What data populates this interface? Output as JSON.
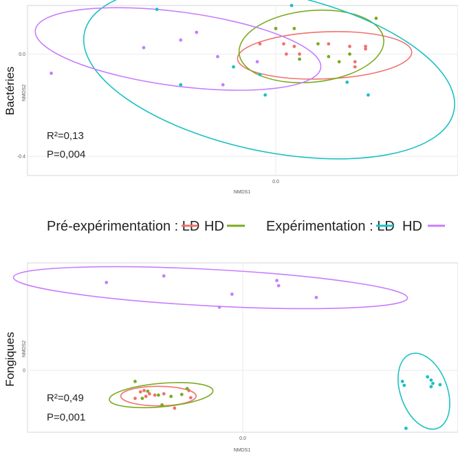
{
  "legend": {
    "group1_label": "Pré-expérimentation : LD",
    "group1_hd_label": "HD",
    "group2_label": "Expérimentation : LD",
    "group2_hd_label": "HD"
  },
  "colors": {
    "pre_LD": "#f0716c",
    "pre_HD": "#7aab1f",
    "exp_LD": "#19c1c4",
    "exp_HD": "#c77cff",
    "grid": "#ebebeb",
    "axis_line": "#d6d6d6",
    "text": "#333333"
  },
  "chart_data": [
    {
      "type": "scatter",
      "title": "Bactéries",
      "xlabel": "NMDS1",
      "ylabel": "NMDS2",
      "xlim": [
        -0.94,
        0.69
      ],
      "ylim": [
        -0.475,
        0.19
      ],
      "xticks": [
        {
          "value": 0.0,
          "label": "0.0"
        }
      ],
      "yticks": [
        {
          "value": 0.0,
          "label": "0.0"
        },
        {
          "value": -0.4,
          "label": "-0.4"
        }
      ],
      "annotations": [
        "R²=0,13",
        "P=0,004"
      ],
      "grid": true,
      "series": [
        {
          "key": "pre_LD",
          "points": [
            [
              -0.06,
              0.04
            ],
            [
              0.03,
              0.04
            ],
            [
              0.07,
              0.03
            ],
            [
              0.2,
              0.04
            ],
            [
              0.28,
              0.03
            ],
            [
              0.34,
              0.03
            ],
            [
              0.09,
              0.0
            ],
            [
              0.04,
              0.0
            ],
            [
              0.3,
              -0.03
            ],
            [
              0.3,
              -0.05
            ],
            [
              0.34,
              0.02
            ]
          ],
          "ellipse": {
            "cx": 0.185,
            "cy": -0.005,
            "rx": 0.33,
            "ry": 0.092,
            "angle": -2.2
          }
        },
        {
          "key": "pre_HD",
          "points": [
            [
              0.0,
              0.1
            ],
            [
              0.07,
              0.1
            ],
            [
              0.16,
              0.04
            ],
            [
              0.28,
              0.0
            ],
            [
              0.2,
              -0.01
            ],
            [
              0.24,
              -0.03
            ],
            [
              0.09,
              -0.02
            ],
            [
              0.38,
              0.14
            ]
          ],
          "ellipse": {
            "cx": 0.135,
            "cy": 0.03,
            "rx": 0.275,
            "ry": 0.14,
            "angle": -5.5
          }
        },
        {
          "key": "exp_LD",
          "points": [
            [
              -0.45,
              0.175
            ],
            [
              -0.36,
              -0.12
            ],
            [
              -0.16,
              -0.05
            ],
            [
              -0.06,
              -0.08
            ],
            [
              -0.04,
              -0.16
            ],
            [
              0.06,
              0.19
            ],
            [
              0.27,
              -0.11
            ],
            [
              0.35,
              -0.16
            ]
          ],
          "ellipse": {
            "cx": -0.025,
            "cy": -0.07,
            "rx": 0.715,
            "ry": 0.31,
            "angle": 12
          }
        },
        {
          "key": "exp_HD",
          "points": [
            [
              -0.85,
              -0.075
            ],
            [
              -0.5,
              0.025
            ],
            [
              -0.36,
              0.055
            ],
            [
              -0.3,
              0.085
            ],
            [
              -0.22,
              -0.01
            ],
            [
              -0.2,
              -0.12
            ],
            [
              -0.07,
              -0.03
            ]
          ],
          "ellipse": {
            "cx": -0.37,
            "cy": 0.02,
            "rx": 0.545,
            "ry": 0.145,
            "angle": 7.5
          }
        }
      ]
    },
    {
      "type": "scatter",
      "title": "Fongiques",
      "xlabel": "NMDS1",
      "ylabel": "NMDS2",
      "xlim": [
        -1.2,
        1.2
      ],
      "ylim": [
        -0.95,
        1.65
      ],
      "xticks": [
        {
          "value": 0.0,
          "label": "0.0"
        }
      ],
      "yticks": [
        {
          "value": 0.0,
          "label": "0"
        }
      ],
      "annotations": [
        "R²=0,49",
        "P=0,001"
      ],
      "grid": true,
      "series": [
        {
          "key": "pre_LD",
          "points": [
            [
              -0.57,
              -0.33
            ],
            [
              -0.55,
              -0.31
            ],
            [
              -0.52,
              -0.36
            ],
            [
              -0.54,
              -0.4
            ],
            [
              -0.49,
              -0.38
            ],
            [
              -0.6,
              -0.43
            ],
            [
              -0.44,
              -0.36
            ],
            [
              -0.38,
              -0.58
            ],
            [
              -0.3,
              -0.31
            ],
            [
              -0.29,
              -0.42
            ]
          ],
          "ellipse": {
            "cx": -0.47,
            "cy": -0.395,
            "rx": 0.21,
            "ry": 0.15,
            "angle": 0
          }
        },
        {
          "key": "pre_HD",
          "points": [
            [
              -0.6,
              -0.17
            ],
            [
              -0.56,
              -0.43
            ],
            [
              -0.53,
              -0.32
            ],
            [
              -0.47,
              -0.38
            ],
            [
              -0.4,
              -0.4
            ],
            [
              -0.34,
              -0.37
            ],
            [
              -0.31,
              -0.28
            ],
            [
              -0.45,
              -0.53
            ]
          ],
          "ellipse": {
            "cx": -0.455,
            "cy": -0.38,
            "rx": 0.29,
            "ry": 0.18,
            "angle": -5
          }
        },
        {
          "key": "exp_LD",
          "points": [
            [
              0.89,
              -0.17
            ],
            [
              0.9,
              -0.23
            ],
            [
              1.03,
              -0.1
            ],
            [
              1.05,
              -0.15
            ],
            [
              1.06,
              -0.2
            ],
            [
              1.05,
              -0.25
            ],
            [
              1.1,
              -0.22
            ],
            [
              0.91,
              -0.89
            ]
          ],
          "ellipse": {
            "cx": 1.01,
            "cy": -0.32,
            "rx": 0.22,
            "ry": 0.36,
            "angle": 70
          }
        },
        {
          "key": "exp_HD",
          "points": [
            [
              -0.76,
              1.35
            ],
            [
              -0.44,
              1.45
            ],
            [
              -0.06,
              1.17
            ],
            [
              0.19,
              1.38
            ],
            [
              0.2,
              1.3
            ],
            [
              0.41,
              1.12
            ],
            [
              -0.13,
              0.97
            ]
          ],
          "ellipse": {
            "cx": -0.18,
            "cy": 1.27,
            "rx": 1.1,
            "ry": 0.28,
            "angle": 3
          }
        }
      ]
    }
  ]
}
